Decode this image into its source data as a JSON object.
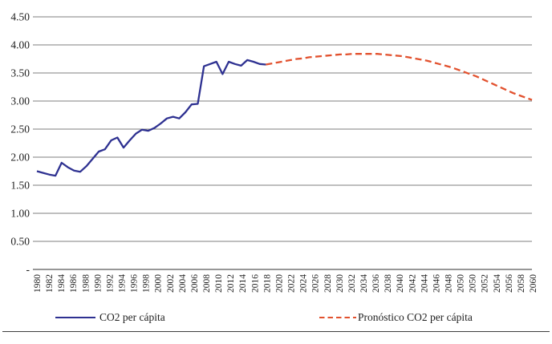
{
  "figure": {
    "background": "#ffffff"
  },
  "chart_data": {
    "type": "line",
    "title": "",
    "xlabel": "",
    "ylabel": "",
    "ylim": [
      0,
      4.5
    ],
    "x_range": [
      1980,
      2060
    ],
    "grid": true,
    "legend_position": "bottom",
    "y_ticks": [
      {
        "label": "4.50",
        "value": 4.5
      },
      {
        "label": "4.00",
        "value": 4.0
      },
      {
        "label": "3.50",
        "value": 3.5
      },
      {
        "label": "3.00",
        "value": 3.0
      },
      {
        "label": "2.50",
        "value": 2.5
      },
      {
        "label": "2.00",
        "value": 2.0
      },
      {
        "label": "1.50",
        "value": 1.5
      },
      {
        "label": "1.00",
        "value": 1.0
      },
      {
        "label": "0.50",
        "value": 0.5
      },
      {
        "label": "-",
        "value": 0
      }
    ],
    "x_tick_labels": [
      "1980",
      "1982",
      "1984",
      "1986",
      "1988",
      "1990",
      "1992",
      "1994",
      "1996",
      "1998",
      "2000",
      "2002",
      "2004",
      "2006",
      "2008",
      "2010",
      "2012",
      "2014",
      "2016",
      "2018",
      "2020",
      "2022",
      "2024",
      "2026",
      "2028",
      "2030",
      "2032",
      "2034",
      "2036",
      "2038",
      "2040",
      "2042",
      "2044",
      "2046",
      "2048",
      "2050",
      "2050",
      "2052",
      "2054",
      "2056",
      "2058",
      "2060"
    ],
    "series": [
      {
        "name": "CO2 per cápita",
        "style": "solid",
        "color": "#2e3191",
        "start_year": 1980,
        "values": [
          1.75,
          1.72,
          1.69,
          1.67,
          1.9,
          1.82,
          1.76,
          1.74,
          1.84,
          1.97,
          2.1,
          2.14,
          2.3,
          2.35,
          2.17,
          2.3,
          2.42,
          2.49,
          2.47,
          2.52,
          2.6,
          2.69,
          2.72,
          2.69,
          2.8,
          2.94,
          2.95,
          3.62,
          3.66,
          3.7,
          3.48,
          3.7,
          3.66,
          3.63,
          3.73,
          3.7,
          3.66,
          3.65
        ]
      },
      {
        "name": "Pronóstico CO2 per cápita",
        "style": "dashed",
        "color": "#e2512e",
        "start_year": 2017,
        "values": [
          3.65,
          3.67,
          3.69,
          3.71,
          3.73,
          3.75,
          3.76,
          3.78,
          3.79,
          3.8,
          3.81,
          3.82,
          3.83,
          3.83,
          3.84,
          3.84,
          3.84,
          3.84,
          3.84,
          3.83,
          3.82,
          3.81,
          3.8,
          3.78,
          3.76,
          3.74,
          3.72,
          3.69,
          3.66,
          3.63,
          3.6,
          3.56,
          3.52,
          3.48,
          3.44,
          3.39,
          3.34,
          3.29,
          3.24,
          3.19,
          3.14,
          3.1,
          3.06,
          3.02
        ]
      }
    ]
  },
  "colors": {
    "gridline": "#7f7f7f",
    "axis_line": "#595959",
    "tick_text": "#1f1f1f",
    "legend_text": "#1f1f1f",
    "figure_border": "#3f3f3f"
  }
}
